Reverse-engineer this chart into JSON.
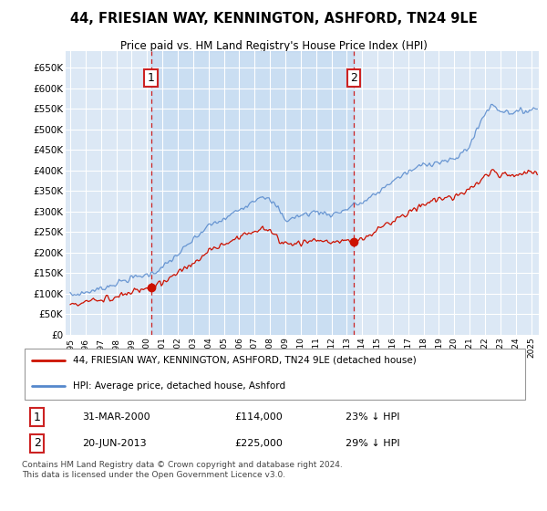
{
  "title": "44, FRIESIAN WAY, KENNINGTON, ASHFORD, TN24 9LE",
  "subtitle": "Price paid vs. HM Land Registry's House Price Index (HPI)",
  "ylim": [
    0,
    680000
  ],
  "xlim_start": 1994.7,
  "xlim_end": 2025.5,
  "background_color": "#dce8f5",
  "plot_bg": "#dce8f5",
  "grid_color": "#ffffff",
  "shade_color": "#ccddf0",
  "sale1_date": 2000.25,
  "sale1_price": 114000,
  "sale2_date": 2013.47,
  "sale2_price": 225000,
  "legend_line1": "44, FRIESIAN WAY, KENNINGTON, ASHFORD, TN24 9LE (detached house)",
  "legend_line2": "HPI: Average price, detached house, Ashford",
  "footer": "Contains HM Land Registry data © Crown copyright and database right 2024.\nThis data is licensed under the Open Government Licence v3.0.",
  "hpi_color": "#5588cc",
  "hpi_fill": "#c8dcf0",
  "sale_color": "#cc1100",
  "vline_color": "#cc2222",
  "table_date1": "31-MAR-2000",
  "table_price1": "£114,000",
  "table_pct1": "23% ↓ HPI",
  "table_date2": "20-JUN-2013",
  "table_price2": "£225,000",
  "table_pct2": "29% ↓ HPI"
}
